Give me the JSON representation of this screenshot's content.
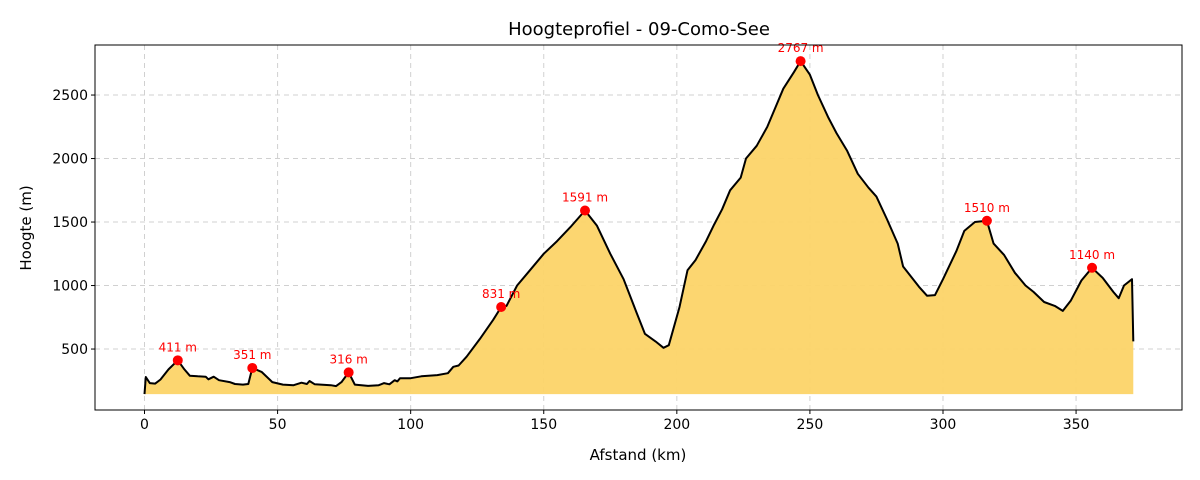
{
  "chart_data": {
    "type": "area",
    "title": "Hoogteprofiel - 09-Como-See",
    "xlabel": "Afstand (km)",
    "ylabel": "Hoogte (m)",
    "xlim": [
      -18.6,
      389.8
    ],
    "ylim": [
      20,
      2894
    ],
    "xticks": [
      0,
      50,
      100,
      150,
      200,
      250,
      300,
      350
    ],
    "yticks": [
      500,
      1000,
      1500,
      2000,
      2500
    ],
    "grid": true,
    "fill_baseline": 145,
    "colors": {
      "fill": "#fcd468",
      "line": "#000000",
      "peaks": "#ff0000"
    },
    "profile": {
      "x": [
        0,
        0.5,
        2,
        4,
        6,
        9,
        12.5,
        15,
        17,
        20,
        23,
        24,
        26,
        28,
        32,
        34,
        37,
        39,
        40.5,
        44,
        48,
        52,
        56,
        59,
        61,
        62,
        64,
        70,
        72,
        74,
        76.7,
        79,
        84,
        88,
        90,
        92,
        94,
        95,
        96,
        100,
        104,
        110,
        114,
        116,
        118,
        121,
        126,
        131,
        134,
        136,
        140,
        144,
        150,
        155,
        160,
        165.5,
        170,
        175,
        180,
        185,
        188,
        192,
        195,
        197,
        201,
        204,
        207,
        211,
        214,
        217,
        220,
        224,
        226,
        230,
        234,
        237,
        240,
        244,
        246.5,
        250,
        253,
        257,
        260,
        264,
        268,
        272,
        275,
        279,
        283,
        285,
        291,
        294,
        297,
        300,
        305,
        308,
        312,
        316.5,
        319,
        323,
        327,
        331,
        334,
        338,
        342,
        345,
        348,
        352,
        356,
        360,
        364,
        366,
        368,
        371,
        371.5
      ],
      "y": [
        145,
        280,
        232,
        228,
        260,
        340,
        411,
        340,
        290,
        285,
        282,
        262,
        282,
        255,
        240,
        225,
        220,
        225,
        351,
        320,
        240,
        220,
        215,
        235,
        225,
        248,
        222,
        215,
        208,
        240,
        316,
        220,
        210,
        215,
        232,
        222,
        255,
        245,
        270,
        270,
        285,
        295,
        310,
        360,
        370,
        440,
        580,
        730,
        831,
        840,
        1000,
        1100,
        1250,
        1350,
        1460,
        1591,
        1470,
        1250,
        1050,
        780,
        620,
        560,
        510,
        530,
        830,
        1120,
        1200,
        1350,
        1480,
        1600,
        1750,
        1850,
        2000,
        2100,
        2250,
        2400,
        2550,
        2680,
        2767,
        2660,
        2500,
        2320,
        2200,
        2060,
        1880,
        1770,
        1700,
        1520,
        1330,
        1150,
        990,
        920,
        925,
        1050,
        1270,
        1430,
        1500,
        1510,
        1330,
        1240,
        1100,
        1000,
        950,
        870,
        840,
        800,
        880,
        1040,
        1140,
        1060,
        950,
        900,
        1000,
        1050,
        560
      ]
    },
    "peaks": [
      {
        "x": 12.5,
        "y": 411,
        "label": "411 m"
      },
      {
        "x": 40.5,
        "y": 351,
        "label": "351 m"
      },
      {
        "x": 76.7,
        "y": 316,
        "label": "316 m"
      },
      {
        "x": 134,
        "y": 831,
        "label": "831 m"
      },
      {
        "x": 165.5,
        "y": 1591,
        "label": "1591 m"
      },
      {
        "x": 246.5,
        "y": 2767,
        "label": "2767 m"
      },
      {
        "x": 316.5,
        "y": 1510,
        "label": "1510 m"
      },
      {
        "x": 356,
        "y": 1140,
        "label": "1140 m"
      }
    ]
  }
}
